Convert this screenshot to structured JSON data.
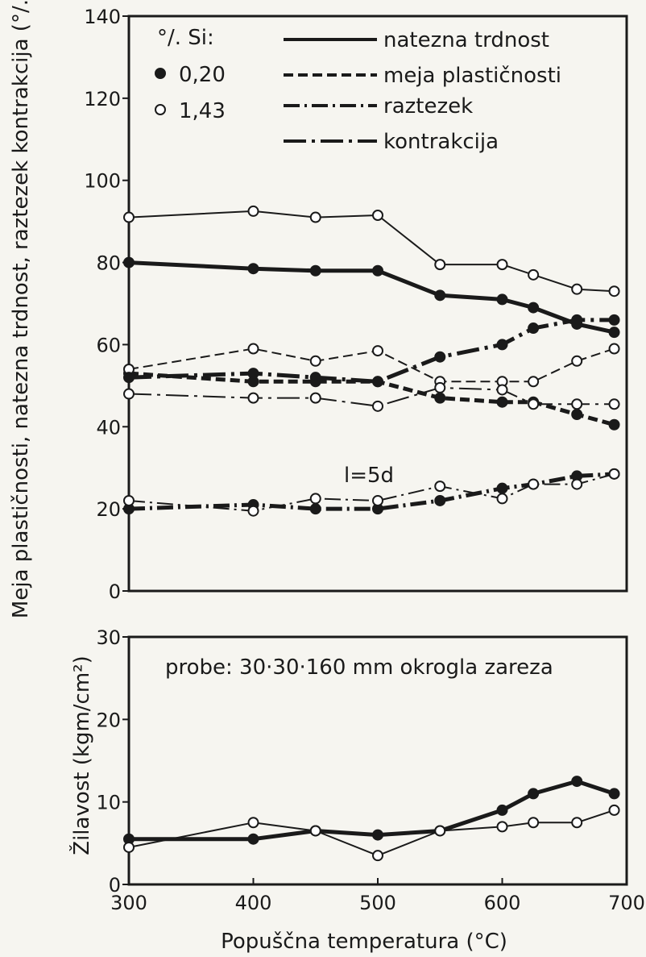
{
  "chart_data": [
    {
      "type": "line",
      "ylabel": "Meja plastičnosti, natezna trdnost, raztezek kontrakcija (°/.)",
      "ylim": [
        0,
        140
      ],
      "yticks": [
        "0",
        "20",
        "40",
        "60",
        "80",
        "100",
        "120",
        "140"
      ],
      "xlim": [
        300,
        700
      ],
      "legend_si_title": "°/. Si:",
      "legend_markers": [
        {
          "label": "0,20",
          "marker": "filled"
        },
        {
          "label": "1,43",
          "marker": "open"
        }
      ],
      "legend_lines": [
        {
          "label": "natezna trdnost",
          "style": "solid"
        },
        {
          "label": "meja plastičnosti",
          "style": "dashed"
        },
        {
          "label": "raztezek",
          "style": "dash-dot"
        },
        {
          "label": "kontrakcija",
          "style": "long-dash-dot"
        }
      ],
      "annotation": "l=5d",
      "series": [
        {
          "property": "natezna trdnost",
          "si": "0,20",
          "style": "solid",
          "marker": "filled",
          "x": [
            300,
            400,
            450,
            500,
            550,
            600,
            625,
            660,
            690
          ],
          "y": [
            80,
            78.5,
            78,
            78,
            72,
            71,
            69,
            65,
            63
          ]
        },
        {
          "property": "natezna trdnost",
          "si": "1,43",
          "style": "solid",
          "marker": "open",
          "x": [
            300,
            400,
            450,
            500,
            550,
            600,
            625,
            660,
            690
          ],
          "y": [
            91,
            92.5,
            91,
            91.5,
            79.5,
            79.5,
            77,
            73.5,
            73
          ]
        },
        {
          "property": "meja plastičnosti",
          "si": "0,20",
          "style": "dashed",
          "marker": "filled",
          "x": [
            300,
            400,
            450,
            500,
            550,
            600,
            625,
            660,
            690
          ],
          "y": [
            53,
            51,
            51,
            51,
            47,
            46,
            46,
            43,
            40.5
          ]
        },
        {
          "property": "meja plastičnosti",
          "si": "1,43",
          "style": "dashed",
          "marker": "open",
          "x": [
            300,
            400,
            450,
            500,
            550,
            600,
            625,
            660,
            690
          ],
          "y": [
            54,
            59,
            56,
            58.5,
            51,
            51,
            51,
            56,
            59
          ]
        },
        {
          "property": "raztezek",
          "si": "0,20",
          "style": "dash-dot",
          "marker": "filled",
          "x": [
            300,
            400,
            450,
            500,
            550,
            600,
            625,
            660,
            690
          ],
          "y": [
            20,
            21,
            20,
            20,
            22,
            25,
            26,
            28,
            28.5
          ]
        },
        {
          "property": "raztezek",
          "si": "1,43",
          "style": "dash-dot",
          "marker": "open",
          "x": [
            300,
            400,
            450,
            500,
            550,
            600,
            625,
            660,
            690
          ],
          "y": [
            22,
            19.5,
            22.5,
            22,
            25.5,
            22.5,
            26,
            26,
            28.5
          ]
        },
        {
          "property": "kontrakcija",
          "si": "0,20",
          "style": "long-dash-dot",
          "marker": "filled",
          "x": [
            300,
            400,
            450,
            500,
            550,
            600,
            625,
            660,
            690
          ],
          "y": [
            52,
            53,
            52,
            51,
            57,
            60,
            64,
            66,
            66
          ]
        },
        {
          "property": "kontrakcija",
          "si": "1,43",
          "style": "long-dash-dot",
          "marker": "open",
          "x": [
            300,
            400,
            450,
            500,
            550,
            600,
            625,
            660,
            690
          ],
          "y": [
            48,
            47,
            47,
            45,
            49.5,
            49,
            45.5,
            45.5,
            45.5
          ]
        }
      ]
    },
    {
      "type": "line",
      "ylabel": "Žilavost (kgm/cm²)",
      "xlabel": "Popuščna temperatura (°C)",
      "ylim": [
        0,
        30
      ],
      "yticks": [
        "0",
        "10",
        "20",
        "30"
      ],
      "xlim": [
        300,
        700
      ],
      "xticks": [
        "300",
        "400",
        "500",
        "600",
        "700"
      ],
      "annotation": "probe: 30·30·160 mm okrogla zareza",
      "series": [
        {
          "si": "0,20",
          "marker": "filled",
          "x": [
            300,
            400,
            450,
            500,
            550,
            600,
            625,
            660,
            690
          ],
          "y": [
            5.5,
            5.5,
            6.5,
            6,
            6.5,
            9,
            11,
            12.5,
            11
          ]
        },
        {
          "si": "1,43",
          "marker": "open",
          "x": [
            300,
            400,
            450,
            500,
            550,
            600,
            625,
            660,
            690
          ],
          "y": [
            4.5,
            7.5,
            6.5,
            3.5,
            6.5,
            7,
            7.5,
            7.5,
            9
          ]
        }
      ]
    }
  ]
}
